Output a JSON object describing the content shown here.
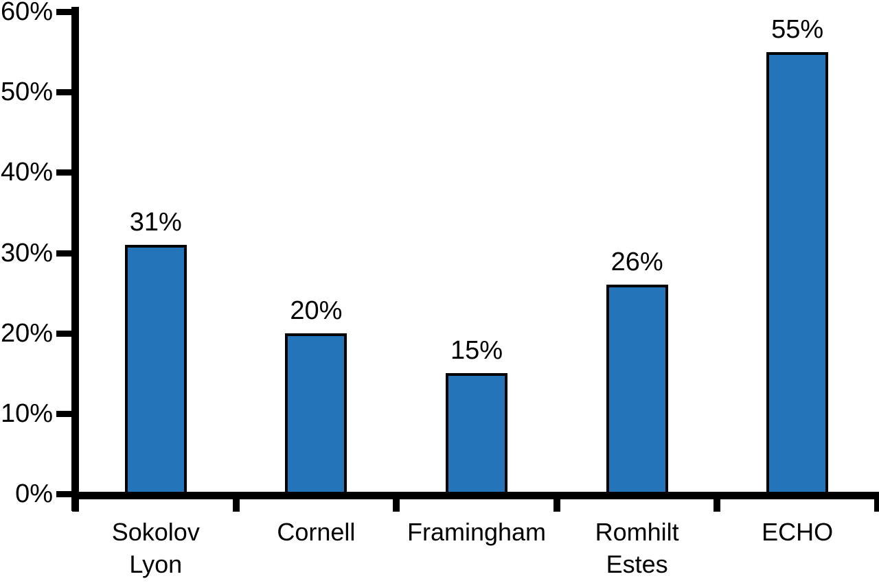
{
  "chart_data": {
    "type": "bar",
    "categories": [
      [
        "Sokolov",
        "Lyon"
      ],
      [
        "Cornell"
      ],
      [
        "Framingham"
      ],
      [
        "Romhilt",
        "Estes"
      ],
      [
        "ECHO"
      ]
    ],
    "values": [
      31,
      20,
      15,
      26,
      55
    ],
    "bar_labels": [
      "31%",
      "20%",
      "15%",
      "26%",
      "55%"
    ],
    "y_ticks": [
      "0%",
      "10%",
      "20%",
      "30%",
      "40%",
      "50%",
      "60%"
    ],
    "y_tick_values": [
      0,
      10,
      20,
      30,
      40,
      50,
      60
    ],
    "ylim": [
      0,
      60
    ],
    "title": "",
    "xlabel": "",
    "ylabel": "",
    "grid": false,
    "legend": "none",
    "value_labels_position": "above-bars"
  },
  "colors": {
    "bar_fill": "#2474BA",
    "bar_border": "#000000",
    "axis": "#000000",
    "text": "#000000",
    "background": "#FFFFFF"
  }
}
